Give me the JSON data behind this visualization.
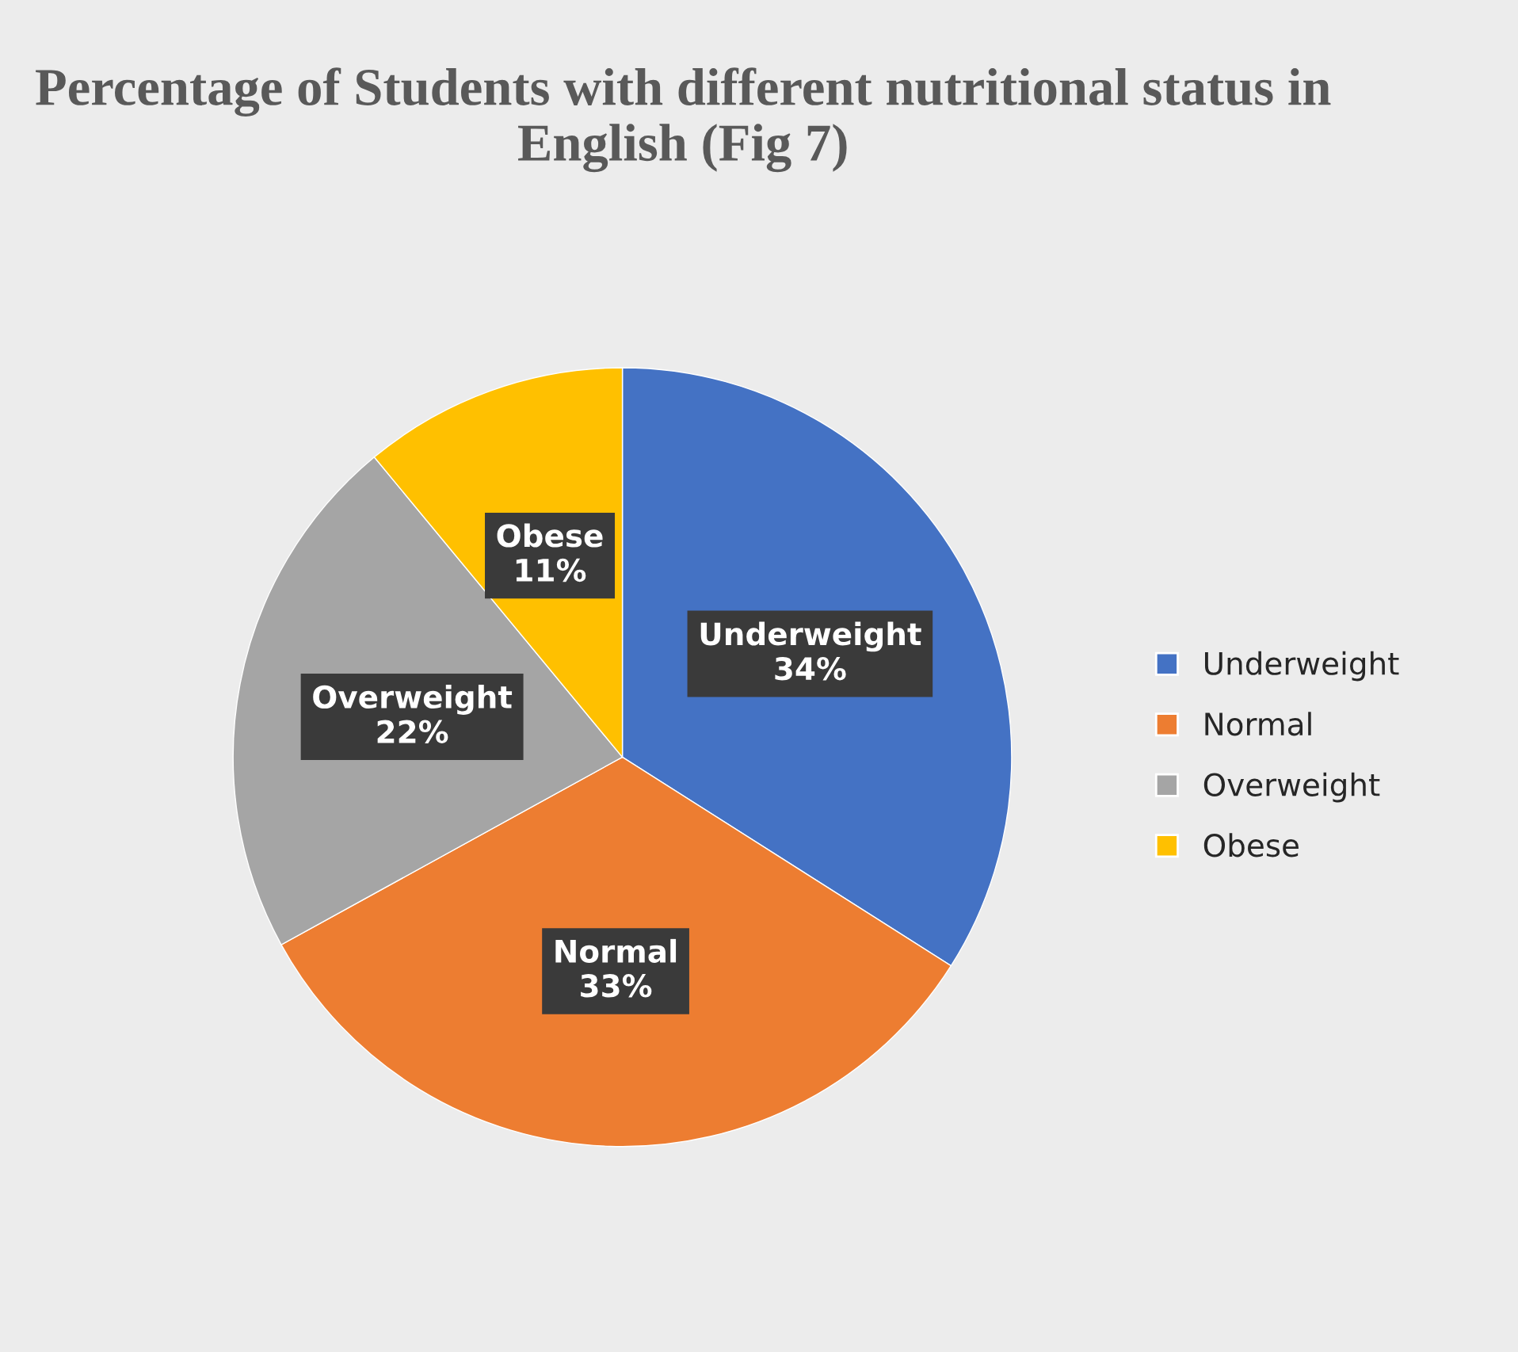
{
  "chart_data": {
    "type": "pie",
    "title": "Percentage of Students with different nutritional status in English (Fig 7)",
    "categories": [
      "Underweight",
      "Normal",
      "Overweight",
      "Obese"
    ],
    "values": [
      34,
      33,
      22,
      11
    ],
    "value_labels": [
      "34%",
      "33%",
      "22%",
      "11%"
    ],
    "colors": [
      "#4472c4",
      "#ed7d31",
      "#a5a5a5",
      "#ffc000"
    ],
    "legend": "right"
  }
}
